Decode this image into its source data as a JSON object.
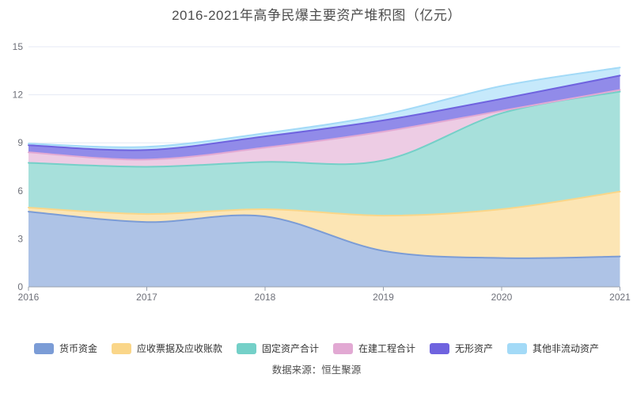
{
  "title": "2016-2021年高争民爆主要资产堆积图（亿元）",
  "source_note": "数据来源：恒生聚源",
  "theme": {
    "title_color": "#4d4d4d",
    "axis_line_color": "#98a0ae",
    "tick_label_color": "#6e7079",
    "grid_line_color": "#e4eaf4",
    "legend_text_color": "#333333",
    "background": "#ffffff"
  },
  "chart_data": {
    "type": "area",
    "stacked": true,
    "smooth": true,
    "title": "2016-2021年高争民爆主要资产堆积图（亿元）",
    "xlabel": "",
    "ylabel": "",
    "categories": [
      "2016",
      "2017",
      "2018",
      "2019",
      "2020",
      "2021"
    ],
    "ylim": [
      0,
      15
    ],
    "yticks": [
      0,
      3,
      6,
      9,
      12,
      15
    ],
    "grid": true,
    "legend_position": "bottom",
    "series": [
      {
        "name": "货币资金",
        "key": "monetary-funds",
        "line": "#7b9cd6",
        "fill": "#aec3e6",
        "values": [
          4.7,
          4.05,
          4.4,
          2.25,
          1.8,
          1.9
        ]
      },
      {
        "name": "应收票据及应收账款",
        "key": "notes-accounts-receivable",
        "line": "#fad689",
        "fill": "#fce5b4",
        "values": [
          0.25,
          0.5,
          0.45,
          2.2,
          3.05,
          4.05
        ]
      },
      {
        "name": "固定资产合计",
        "key": "fixed-assets-total",
        "line": "#74d0c8",
        "fill": "#a7e0db",
        "values": [
          2.8,
          2.95,
          2.95,
          3.45,
          6.0,
          6.25
        ]
      },
      {
        "name": "在建工程合计",
        "key": "construction-in-progress",
        "line": "#e2a9d3",
        "fill": "#edcce4",
        "values": [
          0.65,
          0.45,
          0.9,
          1.8,
          0.15,
          0.1
        ]
      },
      {
        "name": "无形资产",
        "key": "intangible-assets",
        "line": "#6f63df",
        "fill": "#918be9",
        "values": [
          0.45,
          0.6,
          0.7,
          0.7,
          0.75,
          0.9
        ]
      },
      {
        "name": "其他非流动资产",
        "key": "other-non-current-assets",
        "line": "#a3daf7",
        "fill": "#c6e9fb",
        "values": [
          0.1,
          0.2,
          0.2,
          0.35,
          0.8,
          0.5
        ]
      }
    ],
    "stack_totals": [
      8.95,
      8.75,
      9.6,
      10.75,
      12.55,
      13.7
    ]
  }
}
